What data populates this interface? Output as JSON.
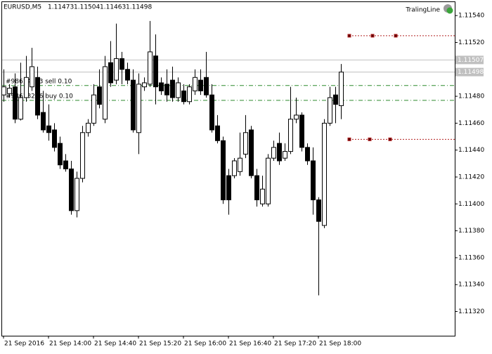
{
  "chart_data": {
    "type": "candlestick",
    "symbol": "EURUSD,M5",
    "indicator": "TralingLine",
    "categories": [
      "21 Sep 2016",
      null,
      null,
      null,
      null,
      null,
      null,
      null,
      "21 Sep 14:00",
      null,
      null,
      null,
      null,
      null,
      null,
      null,
      "21 Sep 14:40",
      null,
      null,
      null,
      null,
      null,
      null,
      null,
      "21 Sep 15:20",
      null,
      null,
      null,
      null,
      null,
      null,
      null,
      "21 Sep 16:00",
      null,
      null,
      null,
      null,
      null,
      null,
      null,
      "21 Sep 16:40",
      null,
      null,
      null,
      null,
      null,
      null,
      null,
      "21 Sep 17:20",
      null,
      null,
      null,
      null,
      null,
      null,
      null,
      "21 Sep 18:00",
      null,
      null,
      null,
      null
    ],
    "open": [
      1.11481,
      1.11482,
      1.11487,
      1.11463,
      1.11479,
      1.11487,
      1.11494,
      1.11468,
      1.11458,
      1.11455,
      1.11445,
      1.11432,
      1.11426,
      1.11395,
      1.11419,
      1.11453,
      1.1146,
      1.11487,
      1.11463,
      1.11505,
      1.11492,
      1.11508,
      1.115,
      1.11492,
      1.11453,
      1.11487,
      1.11489,
      1.1151,
      1.1149,
      1.11489,
      1.11492,
      1.11479,
      1.11484,
      1.11476,
      1.11484,
      1.11492,
      1.11494,
      1.11481,
      1.11458,
      1.11447,
      1.11421,
      1.11421,
      1.11424,
      1.11437,
      1.11455,
      1.11421,
      1.114,
      1.114,
      1.11434,
      1.11445,
      1.11434,
      1.11439,
      1.11463,
      1.11466,
      1.11442,
      1.11432,
      1.11403,
      1.11384,
      1.1146,
      1.11481,
      1.11473
    ],
    "high": [
      1.115,
      1.11489,
      1.11497,
      1.11505,
      1.1151,
      1.11516,
      1.11502,
      1.11484,
      1.11474,
      1.1146,
      1.1145,
      1.11437,
      1.11432,
      1.11424,
      1.11458,
      1.11463,
      1.11489,
      1.115,
      1.1151,
      1.11521,
      1.11534,
      1.11513,
      1.11505,
      1.115,
      1.11497,
      1.11494,
      1.11536,
      1.11526,
      1.11494,
      1.115,
      1.11502,
      1.11494,
      1.11489,
      1.11489,
      1.115,
      1.115,
      1.11513,
      1.11489,
      1.11466,
      1.1145,
      1.11426,
      1.11434,
      1.11453,
      1.11466,
      1.11458,
      1.11426,
      1.11421,
      1.11437,
      1.11447,
      1.11453,
      1.11445,
      1.11487,
      1.11479,
      1.11468,
      1.11445,
      1.11442,
      1.11405,
      1.11463,
      1.11487,
      1.11487,
      1.11504
    ],
    "low": [
      1.11476,
      1.11479,
      1.1146,
      1.11462,
      1.11476,
      1.11484,
      1.11463,
      1.11453,
      1.11447,
      1.11439,
      1.11426,
      1.11424,
      1.11392,
      1.1139,
      1.11416,
      1.1145,
      1.11458,
      1.11471,
      1.1146,
      1.11487,
      1.11489,
      1.11489,
      1.11489,
      1.11453,
      1.11437,
      1.11484,
      1.11487,
      1.11474,
      1.11481,
      1.11476,
      1.11476,
      1.11476,
      1.11474,
      1.11474,
      1.11481,
      1.11481,
      1.11479,
      1.11453,
      1.11445,
      1.114,
      1.11392,
      1.11419,
      1.11421,
      1.11434,
      1.11419,
      1.11398,
      1.11398,
      1.11398,
      1.11432,
      1.11429,
      1.11432,
      1.11437,
      1.1146,
      1.11439,
      1.11429,
      1.11392,
      1.11332,
      1.11382,
      1.11458,
      1.1146,
      1.11463
    ],
    "close": [
      1.11487,
      1.11486,
      1.11463,
      1.11479,
      1.11494,
      1.11502,
      1.11466,
      1.11455,
      1.11453,
      1.11442,
      1.11429,
      1.11426,
      1.11395,
      1.11419,
      1.11453,
      1.1146,
      1.11481,
      1.11474,
      1.11502,
      1.1149,
      1.11508,
      1.115,
      1.11492,
      1.11455,
      1.11489,
      1.1149,
      1.11513,
      1.11487,
      1.11484,
      1.11481,
      1.11479,
      1.1149,
      1.11476,
      1.11487,
      1.11494,
      1.11484,
      1.11481,
      1.11455,
      1.11447,
      1.11403,
      1.11403,
      1.11432,
      1.11434,
      1.11453,
      1.11421,
      1.11403,
      1.11411,
      1.11434,
      1.11442,
      1.11432,
      1.11439,
      1.11463,
      1.11466,
      1.11442,
      1.11432,
      1.11403,
      1.11387,
      1.1146,
      1.11479,
      1.11474,
      1.11498
    ],
    "ylim": [
      1.11302,
      1.1155
    ],
    "yticks": [
      {
        "value": 1.1154,
        "label": "1.11540"
      },
      {
        "value": 1.1152,
        "label": "1.11520"
      },
      {
        "value": 1.1148,
        "label": "1.11480"
      },
      {
        "value": 1.1146,
        "label": "1.11460"
      },
      {
        "value": 1.1144,
        "label": "1.11440"
      },
      {
        "value": 1.1142,
        "label": "1.11420"
      },
      {
        "value": 1.114,
        "label": "1.11400"
      },
      {
        "value": 1.1138,
        "label": "1.11380"
      },
      {
        "value": 1.1136,
        "label": "1.11360"
      },
      {
        "value": 1.1134,
        "label": "1.11340"
      },
      {
        "value": 1.1132,
        "label": "1.11320"
      }
    ],
    "price_lines": [
      1.11507,
      1.11498
    ],
    "orders": [
      {
        "label": "#98614183 sell 0.10",
        "price": 1.11488
      },
      {
        "label": "#98613266 buy 0.10",
        "price": 1.11477
      }
    ],
    "trail_levels": [
      1.11525,
      1.11448
    ],
    "bull_color": "#ffffff",
    "bear_color": "#000000",
    "order_color": "#2e8b2e",
    "trail_color": "#b22222"
  }
}
